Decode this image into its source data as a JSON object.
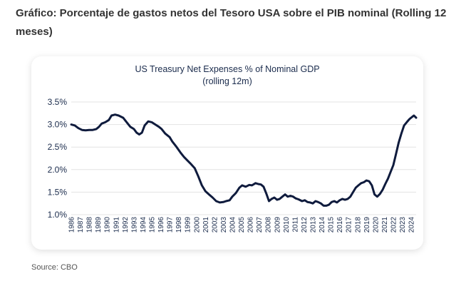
{
  "caption": "Gráfico: Porcentaje de gastos netos del Tesoro USA sobre el PIB nominal (Rolling 12 meses)",
  "source": "Source: CBO",
  "colors": {
    "line": "#0f1b3d",
    "grid": "#e3e3e3",
    "text": "#1a2b4c"
  },
  "chart_data": {
    "type": "line",
    "title": "US Treasury Net Expenses % of Nominal GDP",
    "subtitle": "(rolling 12m)",
    "xlabel": "",
    "ylabel": "",
    "ylim": [
      1.0,
      3.5
    ],
    "y_ticks": [
      "3.5%",
      "3.0%",
      "2.5%",
      "2.0%",
      "1.5%",
      "1.0%"
    ],
    "y_tick_values": [
      3.5,
      3.0,
      2.5,
      2.0,
      1.5,
      1.0
    ],
    "x_ticks": [
      "1986",
      "1987",
      "1988",
      "1989",
      "1990",
      "1991",
      "1992",
      "1993",
      "1994",
      "1995",
      "1996",
      "1997",
      "1998",
      "1999",
      "2000",
      "2001",
      "2002",
      "2003",
      "2004",
      "2005",
      "2006",
      "2007",
      "2008",
      "2009",
      "2010",
      "2011",
      "2012",
      "2013",
      "2014",
      "2015",
      "2016",
      "2017",
      "2018",
      "2019",
      "2020",
      "2021",
      "2022",
      "2023",
      "2024"
    ],
    "xlim": [
      1986.0,
      2024.55
    ],
    "grid": "horizontal",
    "series": [
      {
        "x": [
          1986.0,
          1986.4,
          1986.8,
          1987.2,
          1987.6,
          1988.0,
          1988.4,
          1988.8,
          1989.1,
          1989.4,
          1989.8,
          1990.2,
          1990.5,
          1990.9,
          1991.3,
          1991.8,
          1992.2,
          1992.6,
          1993.0,
          1993.3,
          1993.6,
          1993.9,
          1994.2,
          1994.6,
          1995.0,
          1995.4,
          1995.8,
          1996.1,
          1996.5,
          1997.0,
          1997.3,
          1997.7,
          1998.2,
          1998.6,
          1999.0,
          1999.4,
          1999.8,
          2000.2,
          2000.6,
          2001.0,
          2001.4,
          2001.8,
          2002.2,
          2002.6,
          2003.0,
          2003.3,
          2003.7,
          2004.0,
          2004.4,
          2004.8,
          2005.1,
          2005.5,
          2005.9,
          2006.2,
          2006.6,
          2006.9,
          2007.2,
          2007.5,
          2007.8,
          2008.1,
          2008.4,
          2008.7,
          2009.0,
          2009.3,
          2009.6,
          2009.9,
          2010.2,
          2010.5,
          2010.8,
          2011.1,
          2011.4,
          2011.8,
          2012.1,
          2012.4,
          2012.7,
          2013.0,
          2013.3,
          2013.6,
          2013.9,
          2014.2,
          2014.5,
          2014.8,
          2015.1,
          2015.4,
          2015.7,
          2016.0,
          2016.3,
          2016.6,
          2016.9,
          2017.2,
          2017.5,
          2017.8,
          2018.1,
          2018.4,
          2018.7,
          2019.0,
          2019.3,
          2019.6,
          2019.9,
          2020.2,
          2020.5,
          2020.8,
          2021.1,
          2021.4,
          2021.7,
          2022.0,
          2022.3,
          2022.6,
          2022.9,
          2023.2,
          2023.5,
          2023.8,
          2024.1,
          2024.3,
          2024.55
        ],
        "y": [
          3.0,
          2.98,
          2.92,
          2.88,
          2.87,
          2.88,
          2.88,
          2.9,
          2.95,
          3.02,
          3.05,
          3.1,
          3.2,
          3.22,
          3.2,
          3.15,
          3.05,
          2.95,
          2.9,
          2.82,
          2.78,
          2.82,
          2.98,
          3.07,
          3.05,
          3.0,
          2.95,
          2.9,
          2.8,
          2.72,
          2.62,
          2.52,
          2.38,
          2.28,
          2.2,
          2.12,
          2.03,
          1.85,
          1.65,
          1.52,
          1.45,
          1.38,
          1.3,
          1.27,
          1.28,
          1.3,
          1.32,
          1.4,
          1.48,
          1.6,
          1.65,
          1.62,
          1.66,
          1.65,
          1.7,
          1.68,
          1.67,
          1.62,
          1.47,
          1.3,
          1.35,
          1.38,
          1.33,
          1.35,
          1.4,
          1.45,
          1.4,
          1.42,
          1.4,
          1.36,
          1.34,
          1.3,
          1.32,
          1.28,
          1.27,
          1.25,
          1.3,
          1.28,
          1.25,
          1.2,
          1.2,
          1.22,
          1.28,
          1.3,
          1.27,
          1.32,
          1.35,
          1.33,
          1.35,
          1.4,
          1.5,
          1.6,
          1.65,
          1.7,
          1.72,
          1.76,
          1.74,
          1.65,
          1.45,
          1.4,
          1.46,
          1.55,
          1.68,
          1.8,
          1.95,
          2.1,
          2.35,
          2.6,
          2.8,
          2.98,
          3.05,
          3.12,
          3.17,
          3.2,
          3.15
        ]
      }
    ]
  }
}
